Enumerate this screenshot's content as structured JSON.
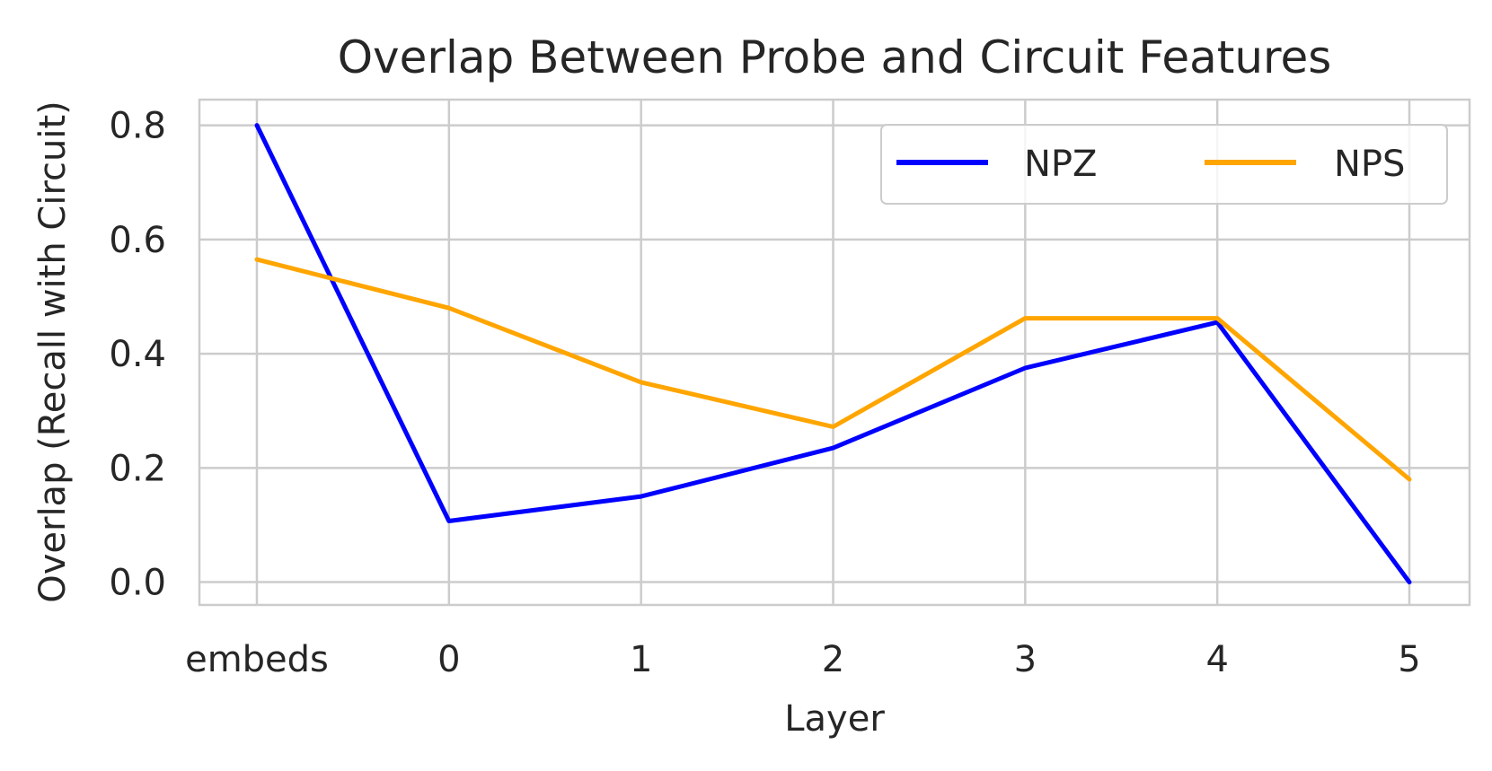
{
  "chart_data": {
    "type": "line",
    "title": "Overlap Between Probe and Circuit Features",
    "xlabel": "Layer",
    "ylabel": "Overlap (Recall with Circuit)",
    "categories": [
      "embeds",
      "0",
      "1",
      "2",
      "3",
      "4",
      "5"
    ],
    "ylim": [
      -0.04,
      0.845
    ],
    "yticks": [
      "0.0",
      "0.2",
      "0.4",
      "0.6",
      "0.8"
    ],
    "grid": true,
    "legend": {
      "placement": "top-right",
      "columns": 2
    },
    "series": [
      {
        "name": "NPZ",
        "color": "#0000ff",
        "values": [
          0.8,
          0.107,
          0.15,
          0.235,
          0.375,
          0.455,
          0.0
        ]
      },
      {
        "name": "NPS",
        "color": "#ffa500",
        "values": [
          0.565,
          0.48,
          0.35,
          0.272,
          0.462,
          0.462,
          0.18
        ]
      }
    ]
  }
}
